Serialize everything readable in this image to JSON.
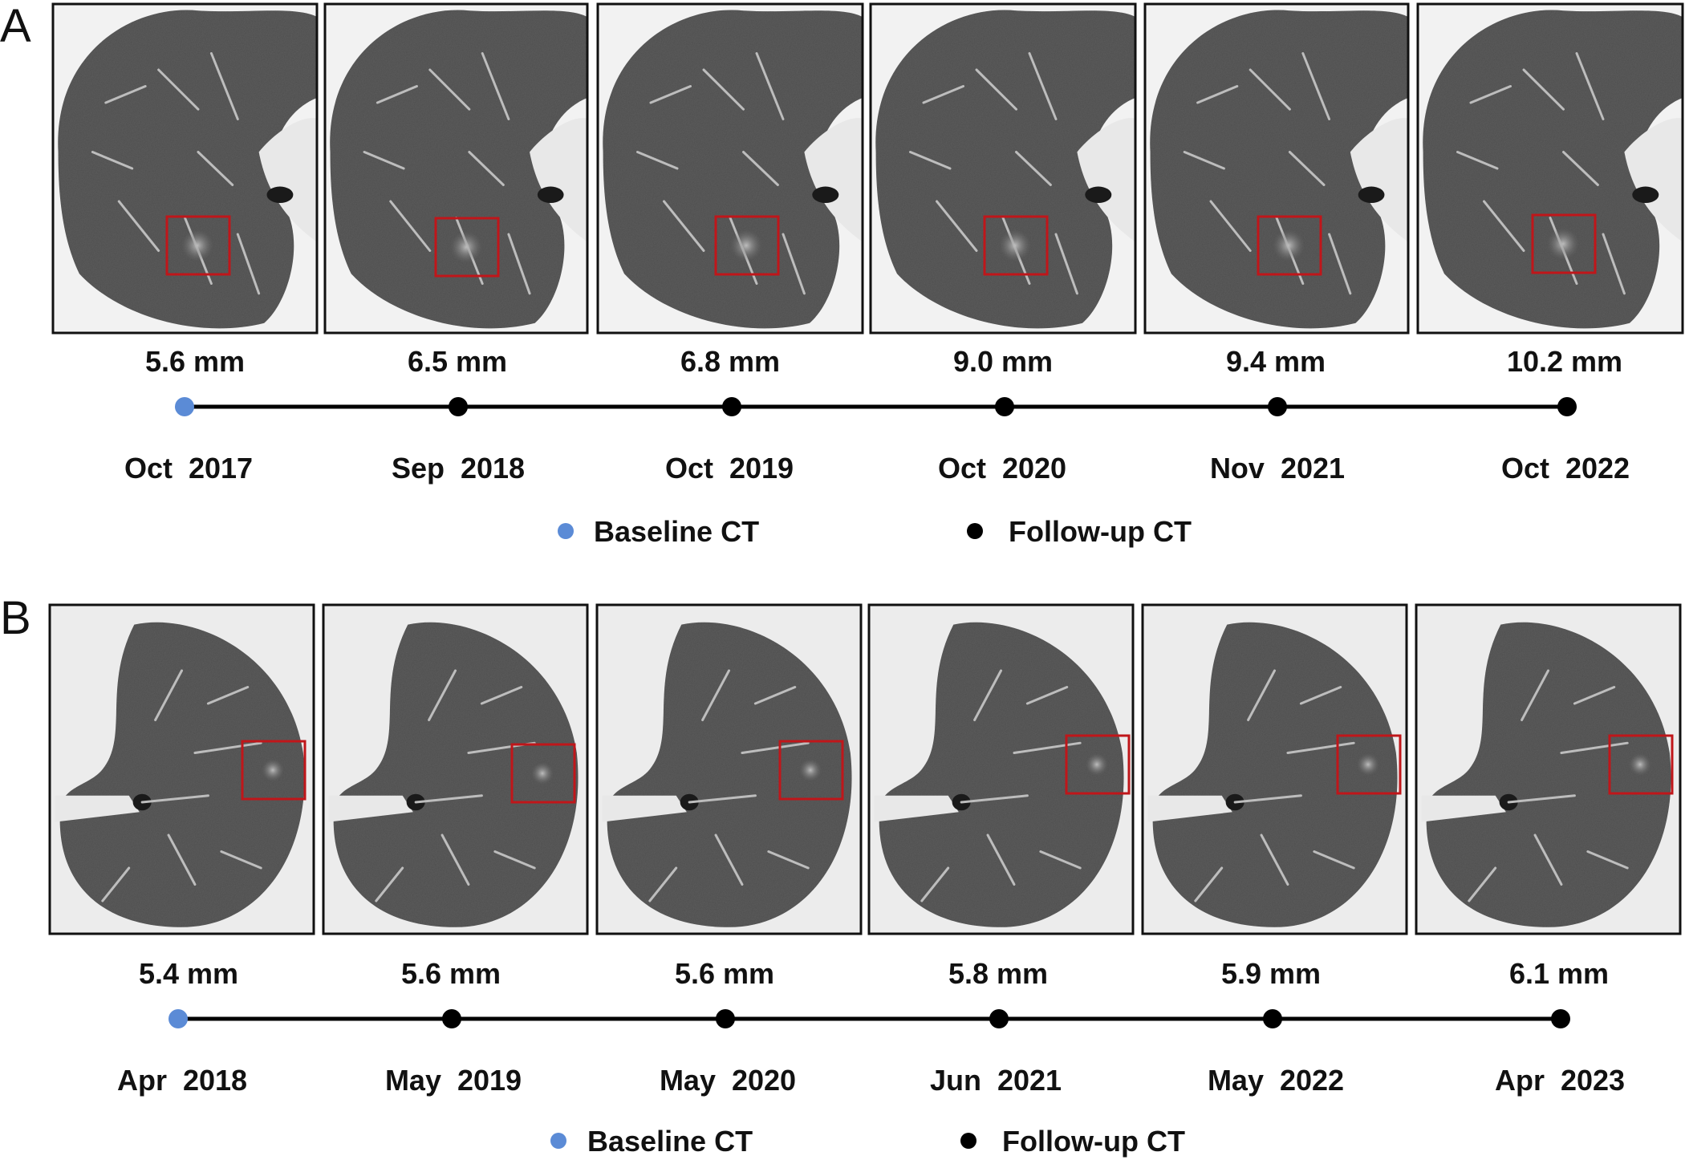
{
  "figure": {
    "colors": {
      "baseline_dot": "#5b8bd6",
      "followup_dot": "#000000",
      "roi_box": "#c0161a",
      "lung_parenchyma": "#5e5e5e",
      "soft_tissue": "#e8e8e8"
    },
    "panels": [
      {
        "letter": "A",
        "ct_images": [
          {
            "size": "5.6 mm",
            "date": "Oct  2017",
            "type": "baseline"
          },
          {
            "size": "6.5 mm",
            "date": "Sep  2018",
            "type": "follow-up"
          },
          {
            "size": "6.8 mm",
            "date": "Oct  2019",
            "type": "follow-up"
          },
          {
            "size": "9.0 mm",
            "date": "Oct  2020",
            "type": "follow-up"
          },
          {
            "size": "9.4 mm",
            "date": "Nov  2021",
            "type": "follow-up"
          },
          {
            "size": "10.2 mm",
            "date": "Oct  2022",
            "type": "follow-up"
          }
        ],
        "legend": {
          "baseline": "Baseline CT",
          "followup": "Follow-up CT"
        }
      },
      {
        "letter": "B",
        "ct_images": [
          {
            "size": "5.4 mm",
            "date": "Apr  2018",
            "type": "baseline"
          },
          {
            "size": "5.6 mm",
            "date": "May  2019",
            "type": "follow-up"
          },
          {
            "size": "5.6 mm",
            "date": "May  2020",
            "type": "follow-up"
          },
          {
            "size": "5.8 mm",
            "date": "Jun  2021",
            "type": "follow-up"
          },
          {
            "size": "5.9 mm",
            "date": "May  2022",
            "type": "follow-up"
          },
          {
            "size": "6.1 mm",
            "date": "Apr  2023",
            "type": "follow-up"
          }
        ],
        "legend": {
          "baseline": "Baseline CT",
          "followup": "Follow-up CT"
        }
      }
    ]
  }
}
